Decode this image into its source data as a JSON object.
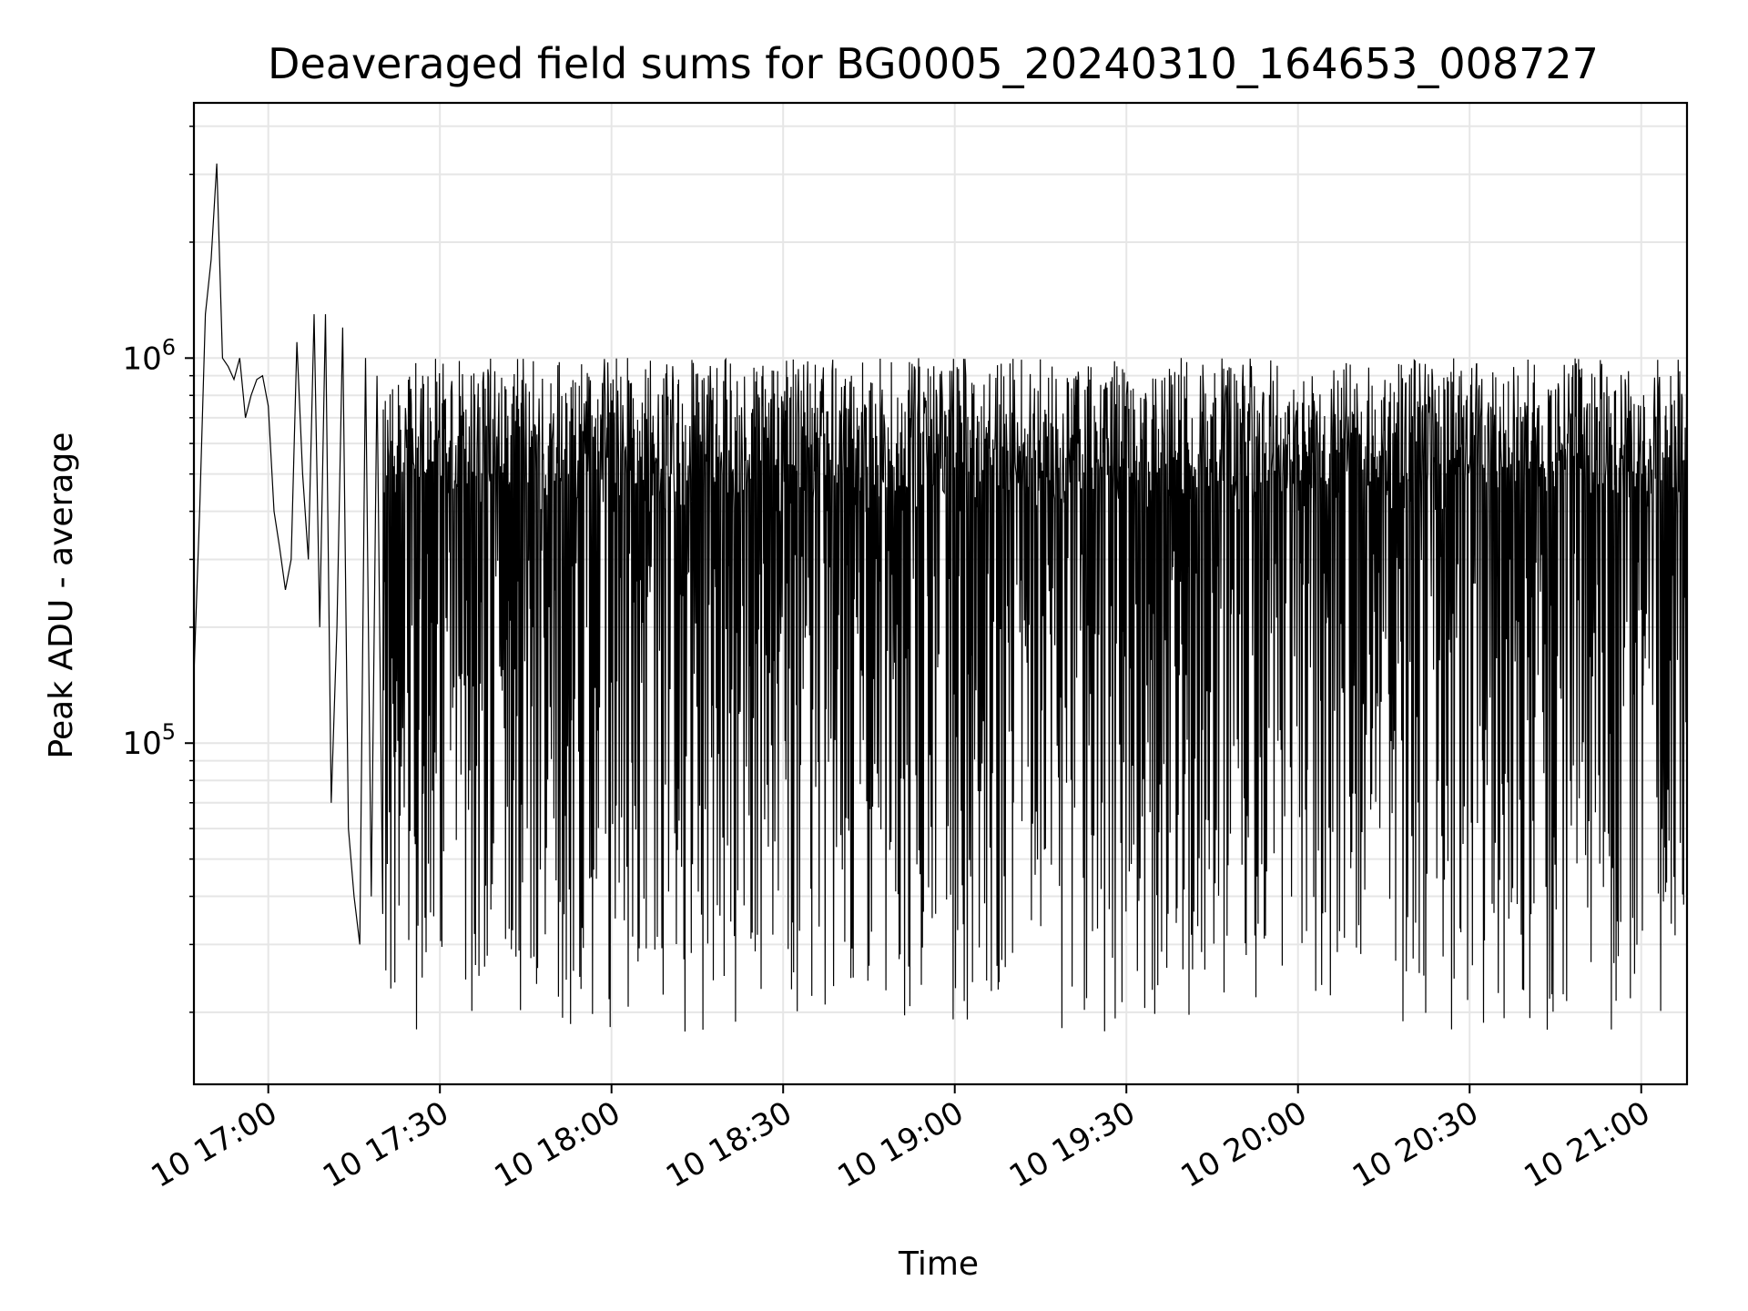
{
  "chart_data": {
    "type": "line",
    "title": "Deaveraged field sums for BG0005_20240310_164653_008727",
    "xlabel": "Time",
    "ylabel": "Peak ADU - average",
    "x_tick_labels": [
      "10 17:00",
      "10 17:30",
      "10 18:00",
      "10 18:30",
      "10 19:00",
      "10 19:30",
      "10 20:00",
      "10 20:30",
      "10 21:00"
    ],
    "y_tick_labels": [
      {
        "base": "10",
        "exp": "5",
        "value": 100000
      },
      {
        "base": "10",
        "exp": "6",
        "value": 1000000
      }
    ],
    "xlim": [
      "2024-03-10 16:47",
      "2024-03-10 21:08"
    ],
    "ylim": [
      13000,
      4600000
    ],
    "yscale": "log",
    "grid": true,
    "line_color": "#000000",
    "grid_color": "#e6e6e6",
    "series": [
      {
        "name": "",
        "x": [
          "2024-03-10 16:47",
          "2024-03-10 16:48",
          "2024-03-10 16:49",
          "2024-03-10 16:50",
          "2024-03-10 16:51",
          "2024-03-10 16:52",
          "2024-03-10 16:53",
          "2024-03-10 16:54",
          "2024-03-10 16:55",
          "2024-03-10 16:56",
          "2024-03-10 16:57",
          "2024-03-10 16:58",
          "2024-03-10 16:59",
          "2024-03-10 17:00",
          "2024-03-10 17:01",
          "2024-03-10 17:02",
          "2024-03-10 17:03",
          "2024-03-10 17:04",
          "2024-03-10 17:05",
          "2024-03-10 17:06",
          "2024-03-10 17:07",
          "2024-03-10 17:08",
          "2024-03-10 17:09",
          "2024-03-10 17:10",
          "2024-03-10 17:11",
          "2024-03-10 17:12",
          "2024-03-10 17:13",
          "2024-03-10 17:14",
          "2024-03-10 17:15",
          "2024-03-10 17:16",
          "2024-03-10 17:17",
          "2024-03-10 17:18",
          "2024-03-10 17:19",
          "2024-03-10 17:20"
        ],
        "y": [
          150000,
          400000,
          1300000,
          1800000,
          3200000,
          1000000,
          950000,
          880000,
          1000000,
          700000,
          800000,
          880000,
          900000,
          750000,
          400000,
          320000,
          250000,
          300000,
          1100000,
          500000,
          300000,
          1300000,
          200000,
          1300000,
          70000,
          200000,
          1200000,
          60000,
          40000,
          30000,
          1000000,
          40000,
          900000,
          36000
        ]
      }
    ]
  }
}
